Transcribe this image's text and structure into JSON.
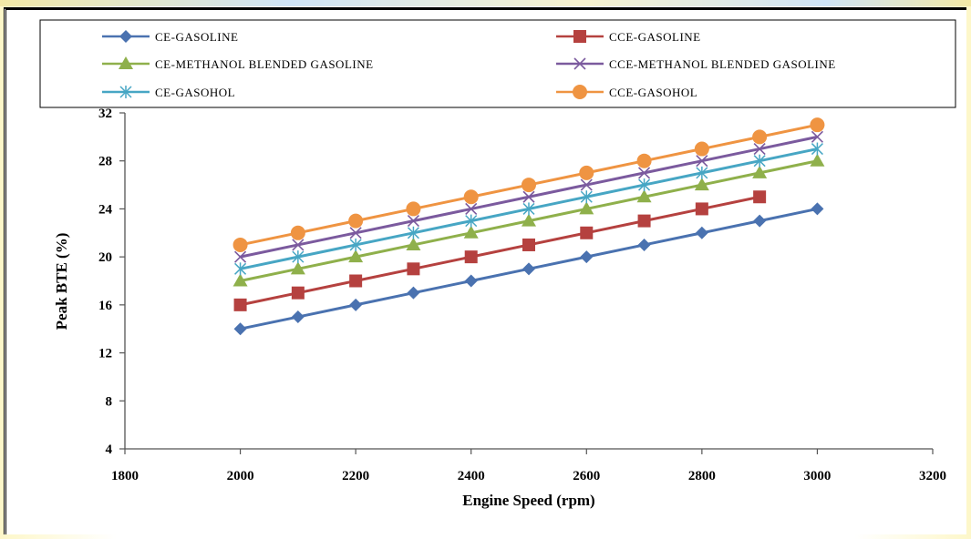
{
  "chart_data": {
    "type": "line",
    "xlabel": "Engine Speed (rpm)",
    "ylabel": "Peak BTE (%)",
    "xlim": [
      1800,
      3200
    ],
    "ylim": [
      4,
      32
    ],
    "x_ticks": [
      1800,
      2000,
      2200,
      2400,
      2600,
      2800,
      3000,
      3200
    ],
    "y_ticks": [
      4,
      8,
      12,
      16,
      20,
      24,
      28,
      32
    ],
    "legend_placement": "top",
    "grid": false,
    "series": [
      {
        "name": "CE-GASOLINE",
        "color": "#4a72b0",
        "marker": "diamond",
        "x": [
          2000,
          2100,
          2200,
          2300,
          2400,
          2500,
          2600,
          2700,
          2800,
          2900,
          3000
        ],
        "values": [
          14,
          15,
          16,
          17,
          18,
          19,
          20,
          21,
          22,
          23,
          24
        ]
      },
      {
        "name": "CCE-GASOLINE",
        "color": "#b5413f",
        "marker": "square",
        "x": [
          2000,
          2100,
          2200,
          2300,
          2400,
          2500,
          2600,
          2700,
          2800,
          2900
        ],
        "values": [
          16,
          17,
          18,
          19,
          20,
          21,
          22,
          23,
          24,
          25
        ]
      },
      {
        "name": "CE-METHANOL BLENDED GASOLINE",
        "color": "#8fb04b",
        "marker": "triangle",
        "x": [
          2000,
          2100,
          2200,
          2300,
          2400,
          2500,
          2600,
          2700,
          2800,
          2900,
          3000
        ],
        "values": [
          18,
          19,
          20,
          21,
          22,
          23,
          24,
          25,
          26,
          27,
          28
        ]
      },
      {
        "name": "CCE-METHANOL BLENDED GASOLINE",
        "color": "#7b5a9e",
        "marker": "x",
        "x": [
          2000,
          2100,
          2200,
          2300,
          2400,
          2500,
          2600,
          2700,
          2800,
          2900,
          3000
        ],
        "values": [
          20,
          21,
          22,
          23,
          24,
          25,
          26,
          27,
          28,
          29,
          30
        ]
      },
      {
        "name": "CE-GASOHOL",
        "color": "#47a6c4",
        "marker": "star",
        "x": [
          2000,
          2100,
          2200,
          2300,
          2400,
          2500,
          2600,
          2700,
          2800,
          2900,
          3000
        ],
        "values": [
          19,
          20,
          21,
          22,
          23,
          24,
          25,
          26,
          27,
          28,
          29
        ]
      },
      {
        "name": "CCE-GASOHOL",
        "color": "#ef9442",
        "marker": "circle",
        "x": [
          2000,
          2100,
          2200,
          2300,
          2400,
          2500,
          2600,
          2700,
          2800,
          2900,
          3000
        ],
        "values": [
          21,
          22,
          23,
          24,
          25,
          26,
          27,
          28,
          29,
          30,
          31
        ]
      }
    ]
  }
}
